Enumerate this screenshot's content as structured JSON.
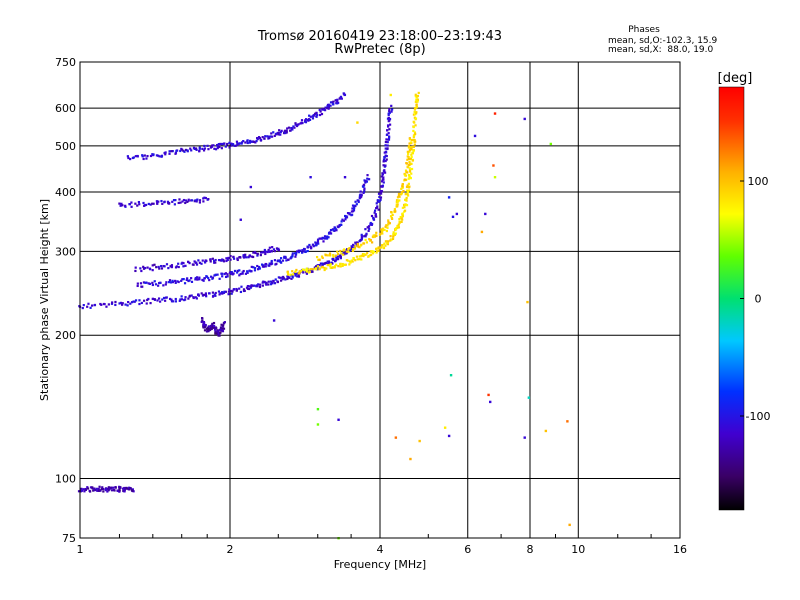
{
  "chart_data": {
    "type": "scatter",
    "title": "Tromsø 20160419 23:18:00–23:19:43",
    "subtitle": "RwPretec (8p)",
    "phase_box": {
      "title": "Phases",
      "line1": "mean, sd,O:-102.3, 15.9",
      "line2": "mean, sd,X:  88.0, 19.0"
    },
    "xlabel": "Frequency [MHz]",
    "ylabel": "Stationary phase Virtual Height [km]",
    "x_scale": "log",
    "y_scale": "log",
    "xlim": [
      1,
      16
    ],
    "ylim": [
      75,
      750
    ],
    "x_ticks": [
      1,
      2,
      4,
      6,
      8,
      10,
      16
    ],
    "x_tick_labels": [
      "1",
      "2",
      "4",
      "6",
      "8",
      "10",
      "16"
    ],
    "y_ticks": [
      75,
      100,
      200,
      300,
      400,
      500,
      600,
      750
    ],
    "y_tick_labels": [
      "75",
      "100",
      "200",
      "300",
      "400",
      "500",
      "600",
      "750"
    ],
    "grid": true,
    "colorbar": {
      "label": "[deg]",
      "min": -180,
      "max": 180,
      "ticks": [
        100,
        0,
        -100
      ],
      "tick_labels": [
        "100",
        "0",
        "-100"
      ]
    },
    "traces": [
      {
        "name": "",
        "phase_deg": -110,
        "points": [
          [
            1.0,
            230
          ],
          [
            1.2,
            233
          ],
          [
            1.4,
            236
          ],
          [
            1.6,
            239
          ],
          [
            1.8,
            243
          ],
          [
            2.0,
            247
          ],
          [
            2.2,
            252
          ],
          [
            2.4,
            258
          ],
          [
            2.6,
            264
          ],
          [
            2.8,
            271
          ],
          [
            3.0,
            278
          ],
          [
            3.2,
            286
          ],
          [
            3.4,
            297
          ],
          [
            3.6,
            312
          ],
          [
            3.8,
            335
          ],
          [
            3.95,
            370
          ],
          [
            4.05,
            420
          ],
          [
            4.1,
            470
          ],
          [
            4.15,
            530
          ],
          [
            4.2,
            600
          ]
        ]
      },
      {
        "name": "",
        "phase_deg": -105,
        "points": [
          [
            1.3,
            255
          ],
          [
            1.5,
            258
          ],
          [
            1.7,
            262
          ],
          [
            1.9,
            266
          ],
          [
            2.1,
            271
          ],
          [
            2.3,
            278
          ],
          [
            2.5,
            286
          ],
          [
            2.7,
            295
          ],
          [
            2.9,
            306
          ],
          [
            3.1,
            320
          ],
          [
            3.3,
            338
          ],
          [
            3.5,
            362
          ],
          [
            3.65,
            392
          ],
          [
            3.78,
            430
          ]
        ]
      },
      {
        "name": "",
        "phase_deg": -115,
        "points": [
          [
            1.3,
            275
          ],
          [
            1.5,
            280
          ],
          [
            1.7,
            284
          ],
          [
            1.9,
            288
          ],
          [
            2.1,
            292
          ],
          [
            2.3,
            298
          ],
          [
            2.5,
            305
          ]
        ]
      },
      {
        "name": "",
        "phase_deg": 85,
        "points": [
          [
            2.6,
            270
          ],
          [
            2.9,
            274
          ],
          [
            3.2,
            279
          ],
          [
            3.5,
            286
          ],
          [
            3.8,
            296
          ],
          [
            4.1,
            310
          ],
          [
            4.3,
            330
          ],
          [
            4.45,
            360
          ],
          [
            4.55,
            400
          ],
          [
            4.62,
            460
          ],
          [
            4.68,
            520
          ],
          [
            4.72,
            600
          ],
          [
            4.75,
            640
          ]
        ]
      },
      {
        "name": "",
        "phase_deg": 90,
        "points": [
          [
            3.0,
            290
          ],
          [
            3.4,
            300
          ],
          [
            3.8,
            315
          ],
          [
            4.1,
            335
          ],
          [
            4.3,
            370
          ],
          [
            4.45,
            410
          ],
          [
            4.55,
            460
          ],
          [
            4.62,
            520
          ]
        ]
      },
      {
        "name": "",
        "phase_deg": -110,
        "points": [
          [
            1.25,
            470
          ],
          [
            1.45,
            480
          ],
          [
            1.65,
            490
          ],
          [
            1.85,
            497
          ],
          [
            2.0,
            502
          ],
          [
            2.2,
            510
          ],
          [
            2.4,
            525
          ],
          [
            2.6,
            540
          ],
          [
            2.8,
            560
          ],
          [
            3.0,
            585
          ],
          [
            3.2,
            610
          ],
          [
            3.4,
            640
          ]
        ]
      },
      {
        "name": "",
        "phase_deg": -112,
        "points": [
          [
            1.2,
            375
          ],
          [
            1.4,
            378
          ],
          [
            1.6,
            382
          ],
          [
            1.8,
            386
          ]
        ]
      },
      {
        "name": "",
        "phase_deg": -125,
        "points": [
          [
            1.0,
            95
          ],
          [
            1.08,
            95
          ],
          [
            1.15,
            95
          ],
          [
            1.22,
            95
          ],
          [
            1.28,
            95
          ]
        ]
      },
      {
        "name": "",
        "phase_deg": -130,
        "points": [
          [
            1.75,
            215
          ],
          [
            1.8,
            205
          ],
          [
            1.85,
            210
          ],
          [
            1.9,
            200
          ],
          [
            1.95,
            212
          ]
        ]
      }
    ],
    "scattered_points": [
      {
        "x": 2.45,
        "y": 215,
        "phase_deg": -110
      },
      {
        "x": 3.0,
        "y": 140,
        "phase_deg": 30
      },
      {
        "x": 3.0,
        "y": 130,
        "phase_deg": 40
      },
      {
        "x": 3.3,
        "y": 133,
        "phase_deg": -110
      },
      {
        "x": 3.3,
        "y": 75,
        "phase_deg": 40
      },
      {
        "x": 4.3,
        "y": 122,
        "phase_deg": 130
      },
      {
        "x": 4.6,
        "y": 110,
        "phase_deg": 110
      },
      {
        "x": 4.8,
        "y": 120,
        "phase_deg": 100
      },
      {
        "x": 5.4,
        "y": 128,
        "phase_deg": 80
      },
      {
        "x": 5.5,
        "y": 123,
        "phase_deg": -110
      },
      {
        "x": 5.55,
        "y": 165,
        "phase_deg": -10
      },
      {
        "x": 5.6,
        "y": 355,
        "phase_deg": -100
      },
      {
        "x": 5.7,
        "y": 360,
        "phase_deg": -110
      },
      {
        "x": 5.5,
        "y": 390,
        "phase_deg": -90
      },
      {
        "x": 6.2,
        "y": 525,
        "phase_deg": -105
      },
      {
        "x": 6.4,
        "y": 330,
        "phase_deg": 110
      },
      {
        "x": 6.5,
        "y": 360,
        "phase_deg": -110
      },
      {
        "x": 6.6,
        "y": 150,
        "phase_deg": 150
      },
      {
        "x": 6.65,
        "y": 145,
        "phase_deg": -110
      },
      {
        "x": 6.75,
        "y": 455,
        "phase_deg": 140
      },
      {
        "x": 6.8,
        "y": 430,
        "phase_deg": 60
      },
      {
        "x": 6.8,
        "y": 585,
        "phase_deg": 160
      },
      {
        "x": 7.8,
        "y": 570,
        "phase_deg": -110
      },
      {
        "x": 7.9,
        "y": 235,
        "phase_deg": 100
      },
      {
        "x": 7.95,
        "y": 148,
        "phase_deg": -20
      },
      {
        "x": 7.8,
        "y": 122,
        "phase_deg": -110
      },
      {
        "x": 8.8,
        "y": 505,
        "phase_deg": 40
      },
      {
        "x": 8.6,
        "y": 126,
        "phase_deg": 100
      },
      {
        "x": 9.5,
        "y": 132,
        "phase_deg": 130
      },
      {
        "x": 9.6,
        "y": 80,
        "phase_deg": 110
      },
      {
        "x": 4.2,
        "y": 640,
        "phase_deg": 80
      },
      {
        "x": 3.6,
        "y": 560,
        "phase_deg": 90
      },
      {
        "x": 3.4,
        "y": 430,
        "phase_deg": -110
      },
      {
        "x": 2.9,
        "y": 430,
        "phase_deg": -105
      },
      {
        "x": 2.2,
        "y": 410,
        "phase_deg": -110
      },
      {
        "x": 2.1,
        "y": 350,
        "phase_deg": -110
      }
    ]
  }
}
